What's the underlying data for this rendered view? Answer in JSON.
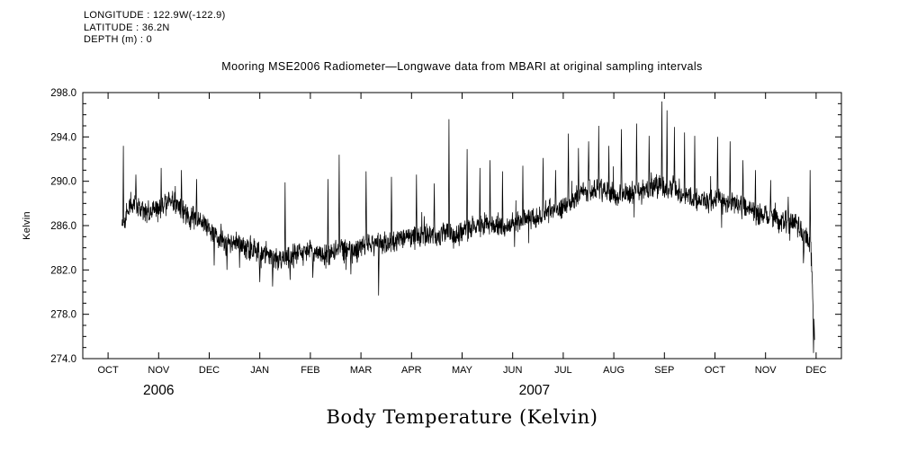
{
  "header": {
    "longitude": "LONGITUDE : 122.9W(-122.9)",
    "latitude": "LATITUDE : 36.2N",
    "depth": "DEPTH (m) : 0"
  },
  "caption": "Body Temperature (Kelvin)",
  "chart_data": {
    "type": "line",
    "title": "Mooring MSE2006 Radiometer—Longwave data from MBARI at original sampling intervals",
    "xlabel": "",
    "ylabel": "Kelvin",
    "ylim": [
      274.0,
      298.0
    ],
    "yticks": [
      274.0,
      278.0,
      282.0,
      286.0,
      290.0,
      294.0,
      298.0
    ],
    "y_minor_step": 1.0,
    "grid": false,
    "frame": true,
    "legend": "none",
    "x_axis": {
      "months": [
        "OCT",
        "NOV",
        "DEC",
        "JAN",
        "FEB",
        "MAR",
        "APR",
        "MAY",
        "JUN",
        "JUL",
        "AUG",
        "SEP",
        "OCT",
        "NOV",
        "DEC"
      ],
      "range_months": [
        -0.5,
        14.5
      ]
    },
    "year_labels": [
      {
        "text": "2006",
        "month_x": 1.0
      },
      {
        "text": "2007",
        "month_x": 8.43
      }
    ],
    "series": [
      {
        "name": "longwave-radiometer",
        "color": "#000000",
        "x_start": 0.27,
        "x_end": 13.97,
        "anchors": [
          [
            0.27,
            285.8
          ],
          [
            0.45,
            287.8
          ],
          [
            0.7,
            287.3
          ],
          [
            1.0,
            287.6
          ],
          [
            1.3,
            287.9
          ],
          [
            1.6,
            286.6
          ],
          [
            1.9,
            286.0
          ],
          [
            2.2,
            285.0
          ],
          [
            2.5,
            284.6
          ],
          [
            2.8,
            284.2
          ],
          [
            3.1,
            283.6
          ],
          [
            3.4,
            283.3
          ],
          [
            3.7,
            283.9
          ],
          [
            4.0,
            284.3
          ],
          [
            4.3,
            283.9
          ],
          [
            4.6,
            284.5
          ],
          [
            4.9,
            284.3
          ],
          [
            5.2,
            284.9
          ],
          [
            5.5,
            284.7
          ],
          [
            5.8,
            285.1
          ],
          [
            6.1,
            285.2
          ],
          [
            6.4,
            285.4
          ],
          [
            6.7,
            285.6
          ],
          [
            7.0,
            286.0
          ],
          [
            7.3,
            286.4
          ],
          [
            7.6,
            286.6
          ],
          [
            7.9,
            286.5
          ],
          [
            8.2,
            287.0
          ],
          [
            8.5,
            287.2
          ],
          [
            8.8,
            287.6
          ],
          [
            9.1,
            288.6
          ],
          [
            9.4,
            289.6
          ],
          [
            9.7,
            289.8
          ],
          [
            10.0,
            289.3
          ],
          [
            10.3,
            289.3
          ],
          [
            10.6,
            289.7
          ],
          [
            10.9,
            290.1
          ],
          [
            11.2,
            289.8
          ],
          [
            11.5,
            289.2
          ],
          [
            11.8,
            288.8
          ],
          [
            12.1,
            288.7
          ],
          [
            12.4,
            288.2
          ],
          [
            12.7,
            287.3
          ],
          [
            13.0,
            286.8
          ],
          [
            13.3,
            286.2
          ],
          [
            13.6,
            285.7
          ],
          [
            13.8,
            284.6
          ],
          [
            13.9,
            283.2
          ],
          [
            13.94,
            278.0
          ],
          [
            13.97,
            276.0
          ]
        ],
        "spikes": [
          [
            0.3,
            293.2
          ],
          [
            0.55,
            290.6
          ],
          [
            1.05,
            291.2
          ],
          [
            1.45,
            291.0
          ],
          [
            1.75,
            290.2
          ],
          [
            2.1,
            282.4
          ],
          [
            2.35,
            282.0
          ],
          [
            2.6,
            282.2
          ],
          [
            3.0,
            280.9
          ],
          [
            3.25,
            280.5
          ],
          [
            3.5,
            289.9
          ],
          [
            3.6,
            281.1
          ],
          [
            4.05,
            281.3
          ],
          [
            4.35,
            290.2
          ],
          [
            4.57,
            292.4
          ],
          [
            4.8,
            281.6
          ],
          [
            5.1,
            290.9
          ],
          [
            5.35,
            279.7
          ],
          [
            5.6,
            290.4
          ],
          [
            6.1,
            290.6
          ],
          [
            6.45,
            289.8
          ],
          [
            6.74,
            295.6
          ],
          [
            7.1,
            292.9
          ],
          [
            7.35,
            291.2
          ],
          [
            7.55,
            291.9
          ],
          [
            7.8,
            290.9
          ],
          [
            8.2,
            291.4
          ],
          [
            8.6,
            292.1
          ],
          [
            8.85,
            291.0
          ],
          [
            9.1,
            294.3
          ],
          [
            9.3,
            293.0
          ],
          [
            9.5,
            293.6
          ],
          [
            9.7,
            295.0
          ],
          [
            9.9,
            293.2
          ],
          [
            10.15,
            294.7
          ],
          [
            10.45,
            295.2
          ],
          [
            10.7,
            294.1
          ],
          [
            10.95,
            297.2
          ],
          [
            11.05,
            296.4
          ],
          [
            11.2,
            294.9
          ],
          [
            11.4,
            294.4
          ],
          [
            11.6,
            294.1
          ],
          [
            12.05,
            294.0
          ],
          [
            12.3,
            293.6
          ],
          [
            12.55,
            291.9
          ],
          [
            12.8,
            291.0
          ],
          [
            13.1,
            290.1
          ],
          [
            13.45,
            288.6
          ],
          [
            13.75,
            282.6
          ],
          [
            13.88,
            291.0
          ],
          [
            13.95,
            274.5
          ]
        ],
        "noise_amplitude": 0.85,
        "seed": 42
      }
    ]
  }
}
